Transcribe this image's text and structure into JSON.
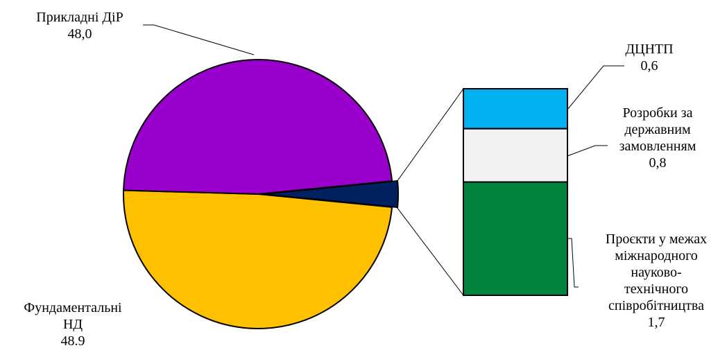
{
  "chart_data": {
    "type": "bar-of-pie",
    "pie": [
      {
        "label_lines": [
          "Прикладні ДіР"
        ],
        "value_label": "48,0",
        "value": 48.0,
        "color": "#9900cc"
      },
      {
        "label_lines": [
          "Фундаментальні",
          "НД"
        ],
        "value_label": "48.9",
        "value": 48.9,
        "color": "#ffc000"
      },
      {
        "label_lines": [],
        "value_label": "",
        "value": 3.1,
        "color": "#002060",
        "is_other": true
      }
    ],
    "bar": [
      {
        "label_lines": [
          "ДЦНТП"
        ],
        "value_label": "0,6",
        "value": 0.6,
        "color": "#00b0f0"
      },
      {
        "label_lines": [
          "Розробки за",
          "державним",
          "замовленням"
        ],
        "value_label": "0,8",
        "value": 0.8,
        "color": "#f2f2f2"
      },
      {
        "label_lines": [
          "Проєкти у межах",
          "міжнародного",
          "науково-",
          "технічного",
          "співробітництва"
        ],
        "value_label": "1,7",
        "value": 1.7,
        "color": "#00843d"
      }
    ]
  }
}
